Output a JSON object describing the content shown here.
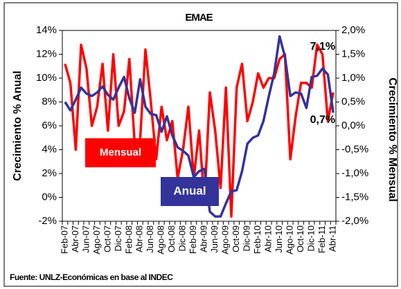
{
  "chart_data": {
    "type": "line",
    "title": "EMAE",
    "ylabel": "Crecimiento % Anual",
    "y2label": "Crecimiento % Mensual",
    "source": "Fuente: UNLZ-Económicas en base al INDEC",
    "categories": [
      "Feb-07",
      null,
      "Abr-07",
      null,
      "Jun-07",
      null,
      "Ago-07",
      null,
      "Oct-07",
      null,
      "Dic-07",
      null,
      "Feb-08",
      null,
      "Abr-08",
      null,
      "Jun-08",
      null,
      "Ago-08",
      null,
      "Oct-08",
      null,
      "Dic-08",
      null,
      "Feb-09",
      null,
      "Abr-09",
      null,
      "Jun-09",
      null,
      "Ago-09",
      null,
      "Oct-09",
      null,
      "Dic-09",
      null,
      "Feb-10",
      null,
      "Abr-10",
      null,
      "Jun-10",
      null,
      "Ago-10",
      null,
      "Oct-10",
      null,
      "Dic-10",
      null,
      "Feb-11",
      null,
      "Abr-11"
    ],
    "series": [
      {
        "name": "Mensual",
        "color": "#ff0000",
        "axis": "y2",
        "values": [
          1.3,
          0.9,
          -0.5,
          1.7,
          1.2,
          0.0,
          0.4,
          1.3,
          -0.1,
          1.5,
          0.0,
          0.3,
          1.4,
          -0.4,
          -0.3,
          1.6,
          0.5,
          -0.7,
          0.4,
          -0.3,
          0.1,
          -1.1,
          -0.5,
          0.4,
          -1.1,
          -0.1,
          -1.6,
          0.7,
          -0.1,
          -1.3,
          0.8,
          -1.9,
          0.8,
          1.3,
          0.1,
          0.5,
          1.1,
          0.8,
          1.0,
          1.0,
          1.4,
          1.5,
          -0.7,
          0.2,
          0.9,
          0.9,
          0.8,
          1.7,
          1.5,
          0.1,
          0.7
        ],
        "value_labels": [
          null,
          null,
          null,
          null,
          null,
          null,
          null,
          null,
          null,
          null,
          null,
          null,
          null,
          null,
          null,
          null,
          null,
          null,
          null,
          null,
          null,
          null,
          null,
          null,
          null,
          null,
          null,
          null,
          null,
          null,
          null,
          null,
          null,
          null,
          null,
          null,
          null,
          null,
          null,
          null,
          null,
          null,
          null,
          null,
          null,
          null,
          null,
          null,
          null,
          null,
          "0,7%"
        ]
      },
      {
        "name": "Anual",
        "color": "#333399",
        "values": [
          8.0,
          7.3,
          8.2,
          9.2,
          8.7,
          8.5,
          8.8,
          9.3,
          8.6,
          8.2,
          9.2,
          10.1,
          8.3,
          7.1,
          9.9,
          7.6,
          7.0,
          6.9,
          5.5,
          6.8,
          5.2,
          4.2,
          3.9,
          3.5,
          1.7,
          2.2,
          2.4,
          -1.2,
          -1.6,
          -1.6,
          -0.5,
          0.5,
          0.6,
          2.2,
          4.5,
          5.0,
          5.2,
          6.4,
          8.5,
          10.4,
          13.5,
          11.8,
          8.5,
          8.8,
          8.7,
          7.5,
          10.1,
          10.2,
          10.8,
          10.3,
          7.1
        ],
        "value_labels": [
          null,
          null,
          null,
          null,
          null,
          null,
          null,
          null,
          null,
          null,
          null,
          null,
          null,
          null,
          null,
          null,
          null,
          null,
          null,
          null,
          null,
          null,
          null,
          null,
          null,
          null,
          null,
          null,
          null,
          null,
          null,
          null,
          null,
          null,
          null,
          null,
          null,
          null,
          null,
          null,
          null,
          null,
          null,
          null,
          null,
          null,
          null,
          null,
          null,
          null,
          "7,1%"
        ]
      }
    ],
    "ylim": [
      -2,
      14
    ],
    "yticks": [
      {
        "value": -2,
        "label": "-2%"
      },
      {
        "value": 0,
        "label": "0%"
      },
      {
        "value": 2,
        "label": "2%"
      },
      {
        "value": 4,
        "label": "4%"
      },
      {
        "value": 6,
        "label": "6%"
      },
      {
        "value": 8,
        "label": "8%"
      },
      {
        "value": 10,
        "label": "10%"
      },
      {
        "value": 12,
        "label": "12%"
      },
      {
        "value": 14,
        "label": "14%"
      }
    ],
    "y2lim": [
      -2,
      2
    ],
    "y2ticks": [
      {
        "value": -2,
        "label": "-2,0%"
      },
      {
        "value": -1.5,
        "label": "-1,5%"
      },
      {
        "value": -1,
        "label": "-1,0%"
      },
      {
        "value": -0.5,
        "label": "-0,5%"
      },
      {
        "value": 0,
        "label": "0,0%"
      },
      {
        "value": 0.5,
        "label": "0,5%"
      },
      {
        "value": 1,
        "label": "1,0%"
      },
      {
        "value": 1.5,
        "label": "1,5%"
      },
      {
        "value": 2,
        "label": "2,0%"
      }
    ],
    "grid": false
  }
}
